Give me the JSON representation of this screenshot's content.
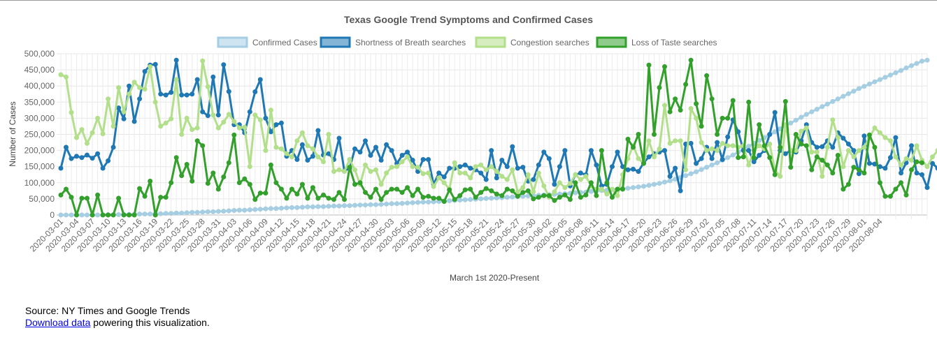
{
  "source": {
    "text": "Source: NY Times and Google Trends",
    "link_label": "Download data",
    "link_suffix": " powering this visualization."
  },
  "colors": {
    "confirmed": "#a6cee3",
    "shortness": "#1f78b4",
    "congestion": "#b2df8a",
    "taste": "#33a02c"
  },
  "chart_data": {
    "type": "line",
    "title": "Texas Google Trend Symptoms and Confirmed Cases",
    "xlabel": "March 1st 2020-Present",
    "ylabel": "Number of Cases",
    "ylim": [
      0,
      500000
    ],
    "yticks": [
      0,
      50000,
      100000,
      150000,
      200000,
      250000,
      300000,
      350000,
      400000,
      450000,
      500000
    ],
    "yticklabels": [
      "0",
      "50,000",
      "100,000",
      "150,000",
      "200,000",
      "250,000",
      "300,000",
      "350,000",
      "400,000",
      "450,000",
      "500,000"
    ],
    "x_start": "2020-03-01",
    "x_end": "2020-08-06",
    "xticklabels": [
      "2020-03-01",
      "2020-03-04",
      "2020-03-07",
      "2020-03-10",
      "2020-03-13",
      "2020-03-16",
      "2020-03-19",
      "2020-03-22",
      "2020-03-25",
      "2020-03-28",
      "2020-03-31",
      "2020-04-03",
      "2020-04-06",
      "2020-04-09",
      "2020-04-12",
      "2020-04-15",
      "2020-04-18",
      "2020-04-21",
      "2020-04-24",
      "2020-04-27",
      "2020-04-30",
      "2020-05-03",
      "2020-05-06",
      "2020-05-09",
      "2020-05-12",
      "2020-05-15",
      "2020-05-18",
      "2020-05-21",
      "2020-05-24",
      "2020-05-27",
      "2020-05-30",
      "2020-06-02",
      "2020-06-05",
      "2020-06-08",
      "2020-06-11",
      "2020-06-14",
      "2020-06-17",
      "2020-06-20",
      "2020-06-23",
      "2020-06-26",
      "2020-06-29",
      "2020-07-02",
      "2020-07-05",
      "2020-07-08",
      "2020-07-11",
      "2020-07-14",
      "2020-07-17",
      "2020-07-20",
      "2020-07-23",
      "2020-07-26",
      "2020-07-29",
      "2020-08-01",
      "2020-08-04"
    ],
    "grid": true,
    "legend": "top",
    "series": [
      {
        "name": "Confirmed Cases",
        "color_key": "confirmed",
        "values": [
          0,
          0,
          0,
          0,
          0,
          0,
          0,
          0,
          0,
          1000,
          1000,
          1000,
          2000,
          2000,
          2000,
          3000,
          3000,
          3000,
          4000,
          4000,
          5000,
          5000,
          6000,
          6000,
          7000,
          8000,
          8000,
          9000,
          10000,
          10000,
          11000,
          12000,
          13000,
          14000,
          15000,
          15000,
          16000,
          17000,
          18000,
          19000,
          20000,
          20000,
          21000,
          22000,
          23000,
          23000,
          24000,
          25000,
          25000,
          26000,
          26000,
          27000,
          28000,
          28000,
          29000,
          29000,
          30000,
          31000,
          31000,
          32000,
          32000,
          33000,
          34000,
          35000,
          35000,
          36000,
          37000,
          38000,
          39000,
          40000,
          40000,
          41000,
          42000,
          43000,
          44000,
          45000,
          46000,
          47000,
          48000,
          49000,
          50000,
          51000,
          52000,
          53000,
          54000,
          55000,
          56000,
          57000,
          58000,
          59000,
          60000,
          61000,
          62000,
          63000,
          64000,
          65000,
          66000,
          67000,
          69000,
          70000,
          71000,
          73000,
          74000,
          76000,
          77000,
          79000,
          80000,
          82000,
          83000,
          85000,
          87000,
          89000,
          92000,
          95000,
          98000,
          102000,
          106000,
          111000,
          116000,
          122000,
          128000,
          134000,
          141000,
          148000,
          155000,
          162000,
          170000,
          178000,
          186000,
          195000,
          204000,
          213000,
          222000,
          231000,
          240000,
          249000,
          258000,
          267000,
          276000,
          285000,
          294000,
          303000,
          312000,
          320000,
          328000,
          336000,
          344000,
          352000,
          360000,
          368000,
          376000,
          384000,
          392000,
          399000,
          406000,
          413000,
          420000,
          427000,
          434000,
          441000,
          448000,
          456000,
          463000,
          470000,
          477000,
          480000
        ]
      },
      {
        "name": "Shortness of Breath searches",
        "color_key": "shortness",
        "values": [
          145000,
          210000,
          175000,
          182000,
          178000,
          186000,
          176000,
          190000,
          145000,
          168000,
          210000,
          332000,
          298000,
          400000,
          290000,
          360000,
          445000,
          465000,
          467000,
          375000,
          372000,
          380000,
          480000,
          372000,
          372000,
          375000,
          420000,
          320000,
          308000,
          428000,
          310000,
          466000,
          383000,
          280000,
          280000,
          255000,
          320000,
          382000,
          420000,
          300000,
          258000,
          280000,
          285000,
          182000,
          200000,
          172000,
          218000,
          170000,
          182000,
          262000,
          186000,
          190000,
          172000,
          238000,
          136000,
          145000,
          205000,
          195000,
          230000,
          185000,
          210000,
          170000,
          218000,
          200000,
          160000,
          185000,
          195000,
          170000,
          135000,
          172000,
          172000,
          95000,
          130000,
          118000,
          145000,
          145000,
          150000,
          155000,
          145000,
          140000,
          130000,
          110000,
          200000,
          115000,
          170000,
          150000,
          212000,
          145000,
          148000,
          105000,
          110000,
          155000,
          195000,
          175000,
          95000,
          150000,
          200000,
          90000,
          125000,
          130000,
          125000,
          200000,
          155000,
          90000,
          95000,
          150000,
          195000,
          150000,
          140000,
          142000,
          135000,
          162000,
          180000,
          190000,
          195000,
          200000,
          120000,
          145000,
          75000,
          220000,
          222000,
          160000,
          175000,
          210000,
          175000,
          225000,
          172000,
          242000,
          295000,
          258000,
          200000,
          200000,
          165000,
          185000,
          200000,
          250000,
          318000,
          200000,
          190000,
          200000,
          195000,
          230000,
          280000,
          225000,
          210000,
          212000,
          230000,
          210000,
          255000,
          238000,
          220000,
          200000,
          128000,
          245000,
          160000,
          158000,
          150000,
          145000,
          178000,
          240000,
          130000,
          162000,
          215000,
          130000,
          125000,
          85000,
          160000,
          145000,
          200000,
          200000
        ]
      },
      {
        "name": "Congestion searches",
        "color_key": "congestion",
        "values": [
          435000,
          428000,
          318000,
          240000,
          265000,
          222000,
          255000,
          300000,
          252000,
          360000,
          275000,
          395000,
          320000,
          375000,
          412000,
          395000,
          390000,
          460000,
          350000,
          275000,
          285000,
          298000,
          420000,
          250000,
          300000,
          265000,
          270000,
          478000,
          398000,
          310000,
          270000,
          288000,
          312000,
          290000,
          270000,
          272000,
          150000,
          310000,
          295000,
          200000,
          325000,
          210000,
          205000,
          190000,
          180000,
          230000,
          255000,
          215000,
          205000,
          180000,
          165000,
          250000,
          135000,
          140000,
          135000,
          172000,
          140000,
          95000,
          155000,
          135000,
          140000,
          95000,
          130000,
          148000,
          150000,
          165000,
          180000,
          150000,
          148000,
          128000,
          130000,
          88000,
          115000,
          100000,
          80000,
          162000,
          130000,
          130000,
          115000,
          150000,
          155000,
          140000,
          150000,
          135000,
          120000,
          110000,
          140000,
          72000,
          85000,
          125000,
          72000,
          130000,
          90000,
          55000,
          72000,
          100000,
          85000,
          98000,
          125000,
          110000,
          120000,
          90000,
          80000,
          80000,
          65000,
          80000,
          60000,
          125000,
          175000,
          215000,
          175000,
          160000,
          230000,
          180000,
          205000,
          340000,
          222000,
          230000,
          230000,
          140000,
          330000,
          300000,
          225000,
          200000,
          205000,
          200000,
          222000,
          215000,
          215000,
          210000,
          215000,
          155000,
          200000,
          215000,
          205000,
          220000,
          140000,
          120000,
          280000,
          200000,
          200000,
          260000,
          270000,
          195000,
          195000,
          120000,
          210000,
          295000,
          240000,
          150000,
          200000,
          180000,
          200000,
          210000,
          240000,
          270000,
          255000,
          240000,
          230000,
          180000,
          155000,
          175000,
          170000,
          215000,
          170000,
          150000,
          180000,
          200000,
          235000,
          235000
        ]
      },
      {
        "name": "Loss of Taste searches",
        "color_key": "taste",
        "values": [
          62000,
          80000,
          55000,
          0,
          52000,
          52000,
          0,
          62000,
          0,
          0,
          0,
          52000,
          0,
          0,
          0,
          82000,
          58000,
          105000,
          0,
          55000,
          55000,
          100000,
          178000,
          122000,
          157000,
          105000,
          230000,
          215000,
          98000,
          130000,
          80000,
          118000,
          162000,
          248000,
          100000,
          112000,
          95000,
          48000,
          68000,
          68000,
          155000,
          100000,
          80000,
          52000,
          80000,
          65000,
          95000,
          52000,
          85000,
          52000,
          62000,
          52000,
          48000,
          70000,
          48000,
          148000,
          95000,
          100000,
          70000,
          55000,
          80000,
          48000,
          70000,
          80000,
          80000,
          70000,
          85000,
          60000,
          80000,
          55000,
          58000,
          52000,
          52000,
          42000,
          78000,
          48000,
          60000,
          78000,
          80000,
          55000,
          70000,
          82000,
          75000,
          65000,
          60000,
          80000,
          75000,
          58000,
          70000,
          75000,
          50000,
          55000,
          60000,
          60000,
          45000,
          55000,
          62000,
          48000,
          100000,
          55000,
          62000,
          100000,
          60000,
          200000,
          100000,
          55000,
          80000,
          80000,
          235000,
          210000,
          250000,
          160000,
          465000,
          250000,
          395000,
          460000,
          320000,
          360000,
          325000,
          405000,
          480000,
          345000,
          275000,
          432000,
          360000,
          250000,
          300000,
          300000,
          355000,
          178000,
          180000,
          350000,
          178000,
          280000,
          215000,
          178000,
          125000,
          210000,
          352000,
          148000,
          250000,
          220000,
          215000,
          140000,
          180000,
          170000,
          155000,
          130000,
          185000,
          80000,
          95000,
          148000,
          140000,
          130000,
          248000,
          210000,
          100000,
          58000,
          58000,
          80000,
          100000,
          62000,
          140000,
          165000,
          162000
        ]
      }
    ]
  }
}
